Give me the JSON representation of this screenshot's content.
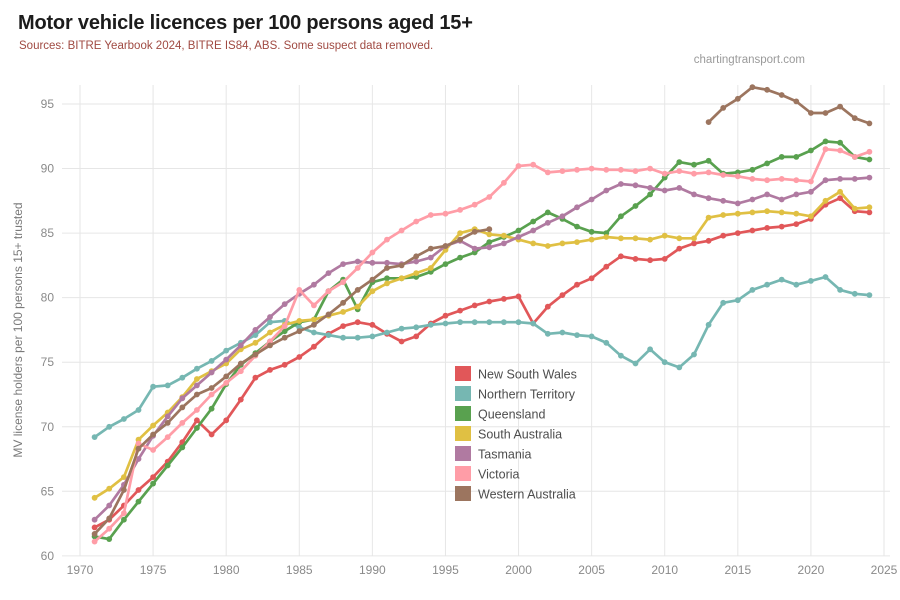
{
  "header": {
    "title": "Motor vehicle licences per 100 persons aged 15+",
    "subtitle": "Sources: BITRE Yearbook 2024, BITRE IS84, ABS. Some suspect data removed.",
    "watermark": "chartingtransport.com"
  },
  "colors": {
    "background": "#ffffff",
    "grid": "#e6e6e6",
    "axis_text": "#8a8a8a",
    "legend_text": "#4d4d4d",
    "subtitle_text": "#a04a42"
  },
  "chart_data": {
    "type": "line",
    "title": "Motor vehicle licences per 100 persons aged 15+",
    "xlabel": "",
    "ylabel": "MV license holders per 100 persons 15+ trusted",
    "xlim": [
      1970,
      2025
    ],
    "ylim": [
      60,
      97
    ],
    "x_ticks": [
      1970,
      1975,
      1980,
      1985,
      1990,
      1995,
      2000,
      2005,
      2010,
      2015,
      2020,
      2025
    ],
    "y_ticks": [
      60,
      65,
      70,
      75,
      80,
      85,
      90,
      95
    ],
    "grid": true,
    "legend_position": "inside-center-right",
    "markers": true,
    "x": [
      1971,
      1972,
      1973,
      1974,
      1975,
      1976,
      1977,
      1978,
      1979,
      1980,
      1981,
      1982,
      1983,
      1984,
      1985,
      1986,
      1987,
      1988,
      1989,
      1990,
      1991,
      1992,
      1993,
      1994,
      1995,
      1996,
      1997,
      1998,
      1999,
      2000,
      2001,
      2002,
      2003,
      2004,
      2005,
      2006,
      2007,
      2008,
      2009,
      2010,
      2011,
      2012,
      2013,
      2014,
      2015,
      2016,
      2017,
      2018,
      2019,
      2020,
      2021,
      2022,
      2023,
      2024
    ],
    "series": [
      {
        "name": "New South Wales",
        "color": "#e15759",
        "values": [
          62.2,
          62.8,
          63.9,
          65.1,
          66.1,
          67.3,
          68.8,
          70.5,
          69.4,
          70.5,
          72.1,
          73.8,
          74.4,
          74.8,
          75.4,
          76.2,
          77.2,
          77.8,
          78.1,
          77.9,
          77.2,
          76.6,
          77.0,
          78.0,
          78.6,
          79.0,
          79.4,
          79.7,
          79.9,
          80.1,
          78.0,
          79.3,
          80.2,
          81.0,
          81.5,
          82.4,
          83.2,
          83.0,
          82.9,
          83.0,
          83.8,
          84.2,
          84.4,
          84.8,
          85.0,
          85.2,
          85.4,
          85.5,
          85.7,
          86.1,
          87.2,
          87.7,
          86.7,
          86.6
        ]
      },
      {
        "name": "Northern Territory",
        "color": "#76b7b2",
        "values": [
          69.2,
          70.0,
          70.6,
          71.3,
          73.1,
          73.2,
          73.8,
          74.5,
          75.1,
          75.9,
          76.5,
          77.1,
          78.1,
          78.2,
          77.7,
          77.3,
          77.1,
          76.9,
          76.9,
          77.0,
          77.3,
          77.6,
          77.7,
          77.9,
          78.0,
          78.1,
          78.1,
          78.1,
          78.1,
          78.1,
          78.0,
          77.2,
          77.3,
          77.1,
          77.0,
          76.5,
          75.5,
          74.9,
          76.0,
          75.0,
          74.6,
          75.6,
          77.9,
          79.6,
          79.8,
          80.6,
          81.0,
          81.4,
          81.0,
          81.3,
          81.6,
          80.6,
          80.3,
          80.2
        ]
      },
      {
        "name": "Queensland",
        "color": "#59a14f",
        "values": [
          61.5,
          61.3,
          62.8,
          64.2,
          65.6,
          67.0,
          68.4,
          69.9,
          71.4,
          73.3,
          74.8,
          75.7,
          76.6,
          77.4,
          78.1,
          78.3,
          80.5,
          81.4,
          79.1,
          81.2,
          81.5,
          81.5,
          81.6,
          82.0,
          82.6,
          83.1,
          83.5,
          84.3,
          84.7,
          85.2,
          85.9,
          86.6,
          86.1,
          85.5,
          85.1,
          85.0,
          86.3,
          87.1,
          88.0,
          89.3,
          90.5,
          90.3,
          90.6,
          89.6,
          89.7,
          89.9,
          90.4,
          90.9,
          90.9,
          91.4,
          92.1,
          92.0,
          90.9,
          90.7
        ]
      },
      {
        "name": "South Australia",
        "color": "#e0c043",
        "values": [
          64.5,
          65.2,
          66.1,
          69.0,
          70.1,
          71.1,
          72.3,
          73.7,
          74.3,
          74.9,
          76.0,
          76.5,
          77.3,
          77.9,
          78.2,
          78.3,
          78.6,
          78.9,
          79.3,
          80.5,
          81.1,
          81.5,
          81.9,
          82.3,
          83.7,
          85.0,
          85.3,
          84.9,
          84.8,
          84.5,
          84.2,
          84.0,
          84.2,
          84.3,
          84.5,
          84.7,
          84.6,
          84.6,
          84.5,
          84.8,
          84.6,
          84.6,
          86.2,
          86.4,
          86.5,
          86.6,
          86.7,
          86.6,
          86.5,
          86.3,
          87.5,
          88.2,
          86.9,
          87.0
        ]
      },
      {
        "name": "Tasmania",
        "color": "#b07aa1",
        "values": [
          62.8,
          63.9,
          65.5,
          67.5,
          69.3,
          70.8,
          72.2,
          73.2,
          74.2,
          75.2,
          76.3,
          77.5,
          78.5,
          79.5,
          80.3,
          81.0,
          81.9,
          82.6,
          82.8,
          82.7,
          82.7,
          82.6,
          82.8,
          83.1,
          84.0,
          84.4,
          83.8,
          83.9,
          84.2,
          84.7,
          85.2,
          85.8,
          86.3,
          87.0,
          87.6,
          88.3,
          88.8,
          88.7,
          88.5,
          88.3,
          88.5,
          88.0,
          87.7,
          87.5,
          87.3,
          87.6,
          88.0,
          87.6,
          88.0,
          88.2,
          89.1,
          89.2,
          89.2,
          89.3
        ]
      },
      {
        "name": "Victoria",
        "color": "#ff9da7",
        "values": [
          61.1,
          62.1,
          63.3,
          68.7,
          68.2,
          69.2,
          70.3,
          71.3,
          72.5,
          73.4,
          74.3,
          75.5,
          76.6,
          77.8,
          80.6,
          79.4,
          80.5,
          81.2,
          82.3,
          83.5,
          84.5,
          85.2,
          85.9,
          86.4,
          86.5,
          86.8,
          87.2,
          87.8,
          88.9,
          90.2,
          90.3,
          89.7,
          89.8,
          89.9,
          90.0,
          89.9,
          89.9,
          89.8,
          90.0,
          89.6,
          89.8,
          89.6,
          89.7,
          89.5,
          89.4,
          89.2,
          89.1,
          89.2,
          89.1,
          89.0,
          91.5,
          91.4,
          90.9,
          91.3
        ]
      },
      {
        "name": "Western Australia",
        "color": "#9c755f",
        "values": [
          61.7,
          62.9,
          65.1,
          68.3,
          69.4,
          70.3,
          71.5,
          72.5,
          73.0,
          73.9,
          74.9,
          75.6,
          76.3,
          76.9,
          77.4,
          77.9,
          78.7,
          79.6,
          80.6,
          81.4,
          82.3,
          82.5,
          83.2,
          83.8,
          84.0,
          84.5,
          85.1,
          85.3,
          null,
          null,
          null,
          null,
          null,
          null,
          null,
          null,
          null,
          null,
          null,
          null,
          null,
          null,
          93.6,
          94.7,
          95.4,
          96.3,
          96.1,
          95.7,
          95.2,
          94.3,
          94.3,
          94.8,
          93.9,
          93.5
        ]
      }
    ]
  }
}
